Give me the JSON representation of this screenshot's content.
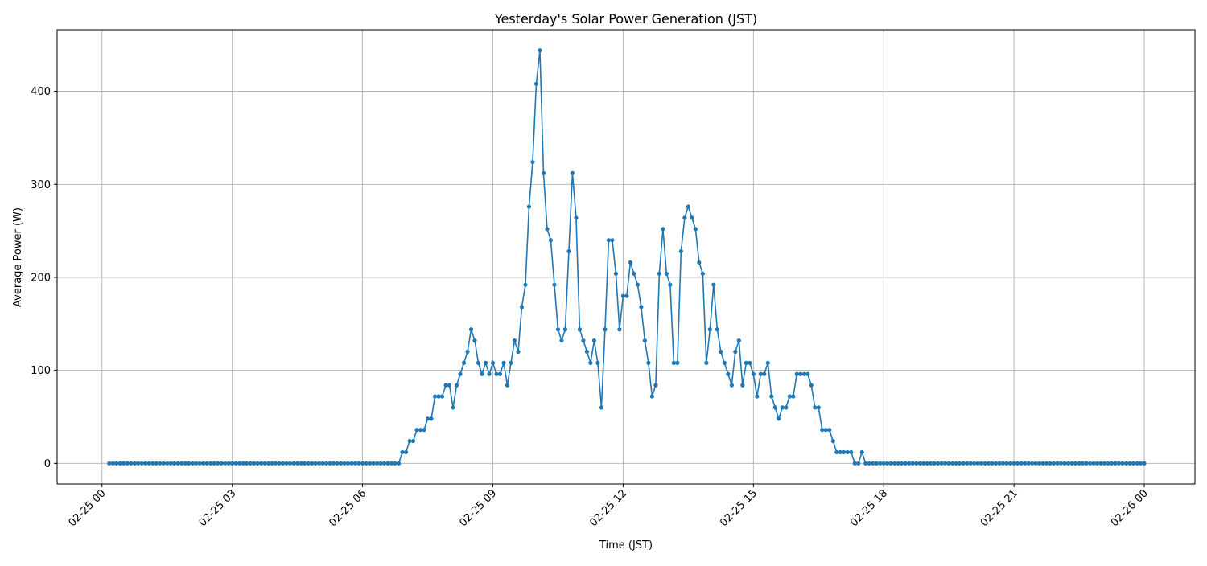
{
  "chart_data": {
    "type": "line",
    "title": "Yesterday's Solar Power Generation (JST)",
    "xlabel": "Time (JST)",
    "ylabel": "Average Power (W)",
    "grid": true,
    "color": "#1f77b4",
    "marker": "circle",
    "xlim": [
      "02-24 22:58",
      "02-26 01:10"
    ],
    "ylim": [
      -22.2,
      466.2
    ],
    "x_ticks": [
      "02-25 00",
      "02-25 03",
      "02-25 06",
      "02-25 09",
      "02-25 12",
      "02-25 15",
      "02-25 18",
      "02-25 21",
      "02-26 00"
    ],
    "y_ticks": [
      0,
      100,
      200,
      300,
      400
    ],
    "x": [
      "02-25 00:10",
      "02-25 00:15",
      "02-25 00:20",
      "02-25 00:25",
      "02-25 00:30",
      "02-25 00:35",
      "02-25 00:40",
      "02-25 00:45",
      "02-25 00:50",
      "02-25 00:55",
      "02-25 01:00",
      "02-25 01:05",
      "02-25 01:10",
      "02-25 01:15",
      "02-25 01:20",
      "02-25 01:25",
      "02-25 01:30",
      "02-25 01:35",
      "02-25 01:40",
      "02-25 01:45",
      "02-25 01:50",
      "02-25 01:55",
      "02-25 02:00",
      "02-25 02:05",
      "02-25 02:10",
      "02-25 02:15",
      "02-25 02:20",
      "02-25 02:25",
      "02-25 02:30",
      "02-25 02:35",
      "02-25 02:40",
      "02-25 02:45",
      "02-25 02:50",
      "02-25 02:55",
      "02-25 03:00",
      "02-25 03:05",
      "02-25 03:10",
      "02-25 03:15",
      "02-25 03:20",
      "02-25 03:25",
      "02-25 03:30",
      "02-25 03:35",
      "02-25 03:40",
      "02-25 03:45",
      "02-25 03:50",
      "02-25 03:55",
      "02-25 04:00",
      "02-25 04:05",
      "02-25 04:10",
      "02-25 04:15",
      "02-25 04:20",
      "02-25 04:25",
      "02-25 04:30",
      "02-25 04:35",
      "02-25 04:40",
      "02-25 04:45",
      "02-25 04:50",
      "02-25 04:55",
      "02-25 05:00",
      "02-25 05:05",
      "02-25 05:10",
      "02-25 05:15",
      "02-25 05:20",
      "02-25 05:25",
      "02-25 05:30",
      "02-25 05:35",
      "02-25 05:40",
      "02-25 05:45",
      "02-25 05:50",
      "02-25 05:55",
      "02-25 06:00",
      "02-25 06:05",
      "02-25 06:10",
      "02-25 06:15",
      "02-25 06:20",
      "02-25 06:25",
      "02-25 06:30",
      "02-25 06:35",
      "02-25 06:40",
      "02-25 06:45",
      "02-25 06:50",
      "02-25 06:55",
      "02-25 07:00",
      "02-25 07:05",
      "02-25 07:10",
      "02-25 07:15",
      "02-25 07:20",
      "02-25 07:25",
      "02-25 07:30",
      "02-25 07:35",
      "02-25 07:40",
      "02-25 07:45",
      "02-25 07:50",
      "02-25 07:55",
      "02-25 08:00",
      "02-25 08:05",
      "02-25 08:10",
      "02-25 08:15",
      "02-25 08:20",
      "02-25 08:25",
      "02-25 08:30",
      "02-25 08:35",
      "02-25 08:40",
      "02-25 08:45",
      "02-25 08:50",
      "02-25 08:55",
      "02-25 09:00",
      "02-25 09:05",
      "02-25 09:10",
      "02-25 09:15",
      "02-25 09:20",
      "02-25 09:25",
      "02-25 09:30",
      "02-25 09:35",
      "02-25 09:40",
      "02-25 09:45",
      "02-25 09:50",
      "02-25 09:55",
      "02-25 10:00",
      "02-25 10:05",
      "02-25 10:10",
      "02-25 10:15",
      "02-25 10:20",
      "02-25 10:25",
      "02-25 10:30",
      "02-25 10:35",
      "02-25 10:40",
      "02-25 10:45",
      "02-25 10:50",
      "02-25 10:55",
      "02-25 11:00",
      "02-25 11:05",
      "02-25 11:10",
      "02-25 11:15",
      "02-25 11:20",
      "02-25 11:25",
      "02-25 11:30",
      "02-25 11:35",
      "02-25 11:40",
      "02-25 11:45",
      "02-25 11:50",
      "02-25 11:55",
      "02-25 12:00",
      "02-25 12:05",
      "02-25 12:10",
      "02-25 12:15",
      "02-25 12:20",
      "02-25 12:25",
      "02-25 12:30",
      "02-25 12:35",
      "02-25 12:40",
      "02-25 12:45",
      "02-25 12:50",
      "02-25 12:55",
      "02-25 13:00",
      "02-25 13:05",
      "02-25 13:10",
      "02-25 13:15",
      "02-25 13:20",
      "02-25 13:25",
      "02-25 13:30",
      "02-25 13:35",
      "02-25 13:40",
      "02-25 13:45",
      "02-25 13:50",
      "02-25 13:55",
      "02-25 14:00",
      "02-25 14:05",
      "02-25 14:10",
      "02-25 14:15",
      "02-25 14:20",
      "02-25 14:25",
      "02-25 14:30",
      "02-25 14:35",
      "02-25 14:40",
      "02-25 14:45",
      "02-25 14:50",
      "02-25 14:55",
      "02-25 15:00",
      "02-25 15:05",
      "02-25 15:10",
      "02-25 15:15",
      "02-25 15:20",
      "02-25 15:25",
      "02-25 15:30",
      "02-25 15:35",
      "02-25 15:40",
      "02-25 15:45",
      "02-25 15:50",
      "02-25 15:55",
      "02-25 16:00",
      "02-25 16:05",
      "02-25 16:10",
      "02-25 16:15",
      "02-25 16:20",
      "02-25 16:25",
      "02-25 16:30",
      "02-25 16:35",
      "02-25 16:40",
      "02-25 16:45",
      "02-25 16:50",
      "02-25 16:55",
      "02-25 17:00",
      "02-25 17:05",
      "02-25 17:10",
      "02-25 17:15",
      "02-25 17:20",
      "02-25 17:25",
      "02-25 17:30",
      "02-25 17:35",
      "02-25 17:40",
      "02-25 17:45",
      "02-25 17:50",
      "02-25 17:55",
      "02-25 18:00",
      "02-25 18:05",
      "02-25 18:10",
      "02-25 18:15",
      "02-25 18:20",
      "02-25 18:25",
      "02-25 18:30",
      "02-25 18:35",
      "02-25 18:40",
      "02-25 18:45",
      "02-25 18:50",
      "02-25 18:55",
      "02-25 19:00",
      "02-25 19:05",
      "02-25 19:10",
      "02-25 19:15",
      "02-25 19:20",
      "02-25 19:25",
      "02-25 19:30",
      "02-25 19:35",
      "02-25 19:40",
      "02-25 19:45",
      "02-25 19:50",
      "02-25 19:55",
      "02-25 20:00",
      "02-25 20:05",
      "02-25 20:10",
      "02-25 20:15",
      "02-25 20:20",
      "02-25 20:25",
      "02-25 20:30",
      "02-25 20:35",
      "02-25 20:40",
      "02-25 20:45",
      "02-25 20:50",
      "02-25 20:55",
      "02-25 21:00",
      "02-25 21:05",
      "02-25 21:10",
      "02-25 21:15",
      "02-25 21:20",
      "02-25 21:25",
      "02-25 21:30",
      "02-25 21:35",
      "02-25 21:40",
      "02-25 21:45",
      "02-25 21:50",
      "02-25 21:55",
      "02-25 22:00",
      "02-25 22:05",
      "02-25 22:10",
      "02-25 22:15",
      "02-25 22:20",
      "02-25 22:25",
      "02-25 22:30",
      "02-25 22:35",
      "02-25 22:40",
      "02-25 22:45",
      "02-25 22:50",
      "02-25 22:55",
      "02-25 23:00",
      "02-25 23:05",
      "02-25 23:10",
      "02-25 23:15",
      "02-25 23:20",
      "02-25 23:25",
      "02-25 23:30",
      "02-25 23:35",
      "02-25 23:40",
      "02-25 23:45",
      "02-25 23:50",
      "02-25 23:55",
      "02-26 00:00"
    ],
    "values": [
      0,
      0,
      0,
      0,
      0,
      0,
      0,
      0,
      0,
      0,
      0,
      0,
      0,
      0,
      0,
      0,
      0,
      0,
      0,
      0,
      0,
      0,
      0,
      0,
      0,
      0,
      0,
      0,
      0,
      0,
      0,
      0,
      0,
      0,
      0,
      0,
      0,
      0,
      0,
      0,
      0,
      0,
      0,
      0,
      0,
      0,
      0,
      0,
      0,
      0,
      0,
      0,
      0,
      0,
      0,
      0,
      0,
      0,
      0,
      0,
      0,
      0,
      0,
      0,
      0,
      0,
      0,
      0,
      0,
      0,
      0,
      0,
      0,
      0,
      0,
      0,
      0,
      0,
      0,
      0,
      0,
      12,
      12,
      24,
      24,
      36,
      36,
      36,
      48,
      48,
      72,
      72,
      72,
      84,
      84,
      60,
      84,
      96,
      108,
      120,
      144,
      132,
      108,
      96,
      108,
      96,
      108,
      96,
      96,
      108,
      84,
      108,
      132,
      120,
      168,
      192,
      276,
      324,
      408,
      444,
      312,
      252,
      240,
      192,
      144,
      132,
      144,
      228,
      312,
      264,
      144,
      132,
      120,
      108,
      132,
      108,
      60,
      144,
      240,
      240,
      204,
      144,
      180,
      180,
      216,
      204,
      192,
      168,
      132,
      108,
      72,
      84,
      204,
      252,
      204,
      192,
      108,
      108,
      228,
      264,
      276,
      264,
      252,
      216,
      204,
      108,
      144,
      192,
      144,
      120,
      108,
      96,
      84,
      120,
      132,
      84,
      108,
      108,
      96,
      72,
      96,
      96,
      108,
      72,
      60,
      48,
      60,
      60,
      72,
      72,
      96,
      96,
      96,
      96,
      84,
      60,
      60,
      36,
      36,
      36,
      24,
      12,
      12,
      12,
      12,
      12,
      0,
      0,
      12,
      0,
      0,
      0,
      0,
      0,
      0,
      0,
      0,
      0,
      0,
      0,
      0,
      0,
      0,
      0,
      0,
      0,
      0,
      0,
      0,
      0,
      0,
      0,
      0,
      0,
      0,
      0,
      0,
      0,
      0,
      0,
      0,
      0,
      0,
      0,
      0,
      0,
      0,
      0,
      0,
      0,
      0,
      0,
      0,
      0,
      0,
      0,
      0,
      0,
      0,
      0,
      0,
      0,
      0,
      0,
      0,
      0,
      0,
      0,
      0,
      0,
      0,
      0,
      0,
      0,
      0,
      0,
      0,
      0,
      0,
      0,
      0,
      0,
      0,
      0,
      0,
      0,
      0
    ]
  }
}
